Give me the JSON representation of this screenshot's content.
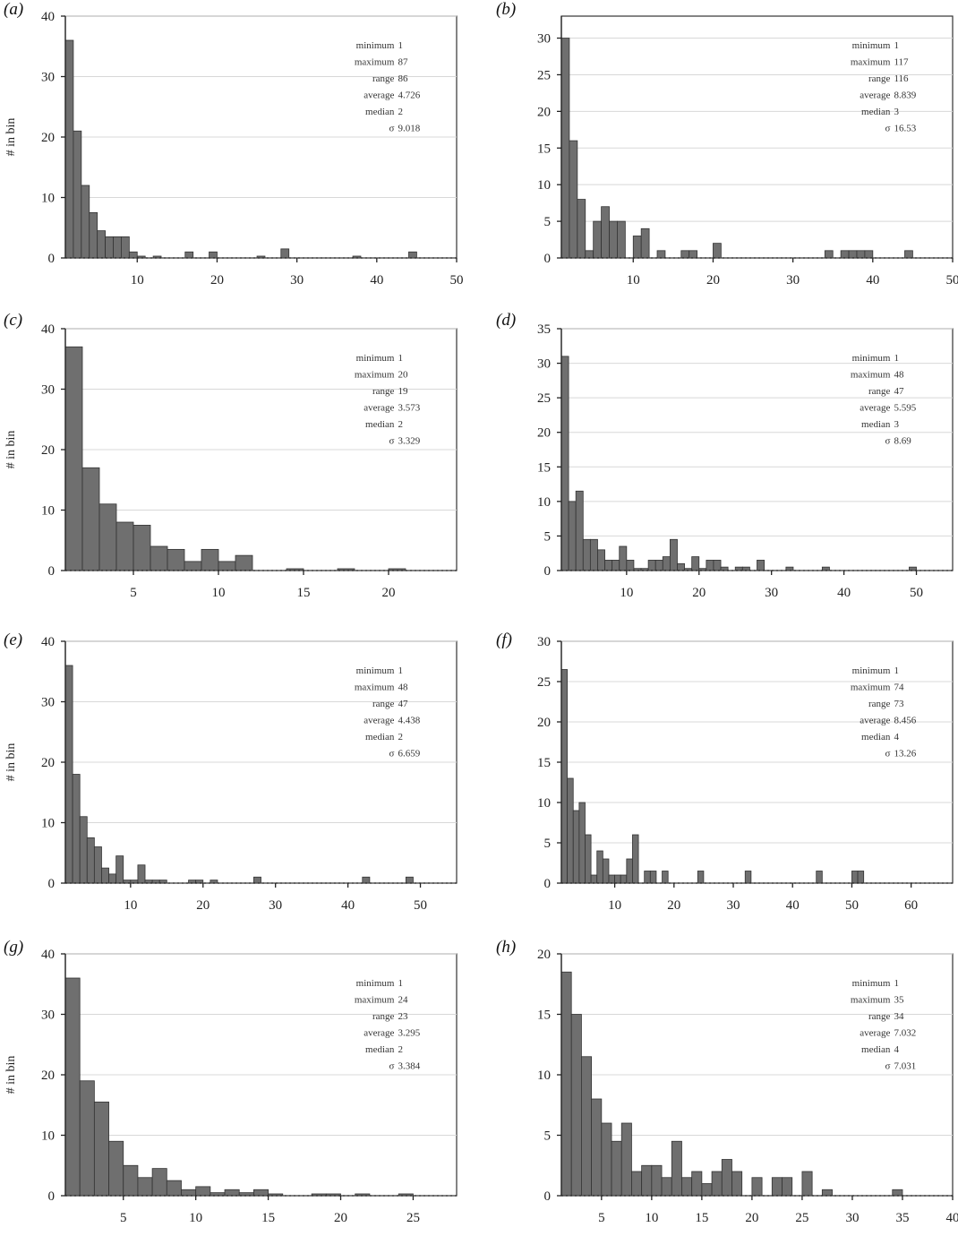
{
  "chart_data": [
    {
      "panel": "(a)",
      "type": "bar",
      "ylabel": "# in bin",
      "xlim": [
        1,
        50
      ],
      "xticks": [
        10,
        20,
        30,
        40,
        50
      ],
      "ylim": [
        0,
        40
      ],
      "yticks": [
        0,
        10,
        20,
        30,
        40
      ],
      "x": [
        1,
        2,
        3,
        4,
        5,
        6,
        7,
        8,
        9,
        10,
        11,
        12,
        13,
        14,
        15,
        16,
        17,
        18,
        19,
        20,
        21,
        22,
        23,
        24,
        25,
        26,
        27,
        28,
        29,
        30,
        31,
        32,
        33,
        34,
        35,
        36,
        37,
        38,
        39,
        40,
        41,
        42,
        43,
        44,
        45,
        46,
        47,
        48,
        49
      ],
      "values": [
        36,
        21,
        12,
        7.5,
        4.5,
        3.5,
        3.5,
        3.5,
        1,
        0.3,
        0,
        0.3,
        0,
        0,
        0,
        1,
        0,
        0,
        1,
        0,
        0,
        0,
        0,
        0,
        0.3,
        0,
        0,
        1.5,
        0,
        0,
        0,
        0,
        0,
        0,
        0,
        0,
        0.3,
        0,
        0,
        0,
        0,
        0,
        0,
        1,
        0,
        0,
        0,
        0,
        0
      ],
      "stats": [
        {
          "label": "minimum",
          "value": "1"
        },
        {
          "label": "maximum",
          "value": "87"
        },
        {
          "label": "range",
          "value": "86"
        },
        {
          "label": "average",
          "value": "4.726"
        },
        {
          "label": "median",
          "value": "2"
        },
        {
          "label": "σ",
          "value": "9.018"
        }
      ]
    },
    {
      "panel": "(b)",
      "type": "bar",
      "ylabel": "",
      "xlim": [
        1,
        50
      ],
      "xticks": [
        10,
        20,
        30,
        40,
        50
      ],
      "ylim": [
        0,
        33
      ],
      "yticks": [
        0,
        5,
        10,
        15,
        20,
        25,
        30
      ],
      "x": [
        1,
        2,
        3,
        4,
        5,
        6,
        7,
        8,
        9,
        10,
        11,
        12,
        13,
        14,
        15,
        16,
        17,
        18,
        19,
        20,
        21,
        22,
        23,
        24,
        25,
        26,
        27,
        28,
        29,
        30,
        31,
        32,
        33,
        34,
        35,
        36,
        37,
        38,
        39,
        40,
        41,
        42,
        43,
        44,
        45,
        46,
        47,
        48,
        49
      ],
      "values": [
        30,
        16,
        8,
        1,
        5,
        7,
        5,
        5,
        0,
        3,
        4,
        0,
        1,
        0,
        0,
        1,
        1,
        0,
        0,
        2,
        0,
        0,
        0,
        0,
        0,
        0,
        0,
        0,
        0,
        0,
        0,
        0,
        0,
        1,
        0,
        1,
        1,
        1,
        1,
        0,
        0,
        0,
        0,
        1,
        0,
        0,
        0,
        0,
        0
      ],
      "stats": [
        {
          "label": "minimum",
          "value": "1"
        },
        {
          "label": "maximum",
          "value": "117"
        },
        {
          "label": "range",
          "value": "116"
        },
        {
          "label": "average",
          "value": "8.839"
        },
        {
          "label": "median",
          "value": "3"
        },
        {
          "label": "σ",
          "value": "16.53"
        }
      ]
    },
    {
      "panel": "(c)",
      "type": "bar",
      "ylabel": "# in bin",
      "xlim": [
        1,
        24
      ],
      "xticks": [
        5,
        10,
        15,
        20
      ],
      "ylim": [
        0,
        40
      ],
      "yticks": [
        0,
        10,
        20,
        30,
        40
      ],
      "x": [
        1,
        2,
        3,
        4,
        5,
        6,
        7,
        8,
        9,
        10,
        11,
        12,
        13,
        14,
        15,
        16,
        17,
        18,
        19,
        20,
        21,
        22,
        23
      ],
      "values": [
        37,
        17,
        11,
        8,
        7.5,
        4,
        3.5,
        1.5,
        3.5,
        1.5,
        2.5,
        0,
        0,
        0.3,
        0,
        0,
        0.3,
        0,
        0,
        0.3,
        0,
        0,
        0
      ],
      "stats": [
        {
          "label": "minimum",
          "value": "1"
        },
        {
          "label": "maximum",
          "value": "20"
        },
        {
          "label": "range",
          "value": "19"
        },
        {
          "label": "average",
          "value": "3.573"
        },
        {
          "label": "median",
          "value": "2"
        },
        {
          "label": "σ",
          "value": "3.329"
        }
      ]
    },
    {
      "panel": "(d)",
      "type": "bar",
      "ylabel": "",
      "xlim": [
        1,
        55
      ],
      "xticks": [
        10,
        20,
        30,
        40,
        50
      ],
      "ylim": [
        0,
        35
      ],
      "yticks": [
        0,
        5,
        10,
        15,
        20,
        25,
        30,
        35
      ],
      "x": [
        1,
        2,
        3,
        4,
        5,
        6,
        7,
        8,
        9,
        10,
        11,
        12,
        13,
        14,
        15,
        16,
        17,
        18,
        19,
        20,
        21,
        22,
        23,
        24,
        25,
        26,
        27,
        28,
        29,
        30,
        31,
        32,
        33,
        34,
        35,
        36,
        37,
        38,
        39,
        40,
        41,
        42,
        43,
        44,
        45,
        46,
        47,
        48,
        49,
        50,
        51,
        52,
        53,
        54
      ],
      "values": [
        31,
        10,
        11.5,
        4.5,
        4.5,
        3,
        1.5,
        1.5,
        3.5,
        1.5,
        0.3,
        0.3,
        1.5,
        1.5,
        2,
        4.5,
        1,
        0.3,
        2,
        0.3,
        1.5,
        1.5,
        0.5,
        0,
        0.5,
        0.5,
        0,
        1.5,
        0,
        0,
        0,
        0.5,
        0,
        0,
        0,
        0,
        0.5,
        0,
        0,
        0,
        0,
        0,
        0,
        0,
        0,
        0,
        0,
        0,
        0.5,
        0,
        0,
        0,
        0,
        0
      ],
      "stats": [
        {
          "label": "minimum",
          "value": "1"
        },
        {
          "label": "maximum",
          "value": "48"
        },
        {
          "label": "range",
          "value": "47"
        },
        {
          "label": "average",
          "value": "5.595"
        },
        {
          "label": "median",
          "value": "3"
        },
        {
          "label": "σ",
          "value": "8.69"
        }
      ]
    },
    {
      "panel": "(e)",
      "type": "bar",
      "ylabel": "# in bin",
      "xlim": [
        1,
        55
      ],
      "xticks": [
        10,
        20,
        30,
        40,
        50
      ],
      "ylim": [
        0,
        40
      ],
      "yticks": [
        0,
        10,
        20,
        30,
        40
      ],
      "x": [
        1,
        2,
        3,
        4,
        5,
        6,
        7,
        8,
        9,
        10,
        11,
        12,
        13,
        14,
        15,
        16,
        17,
        18,
        19,
        20,
        21,
        22,
        23,
        24,
        25,
        26,
        27,
        28,
        29,
        30,
        31,
        32,
        33,
        34,
        35,
        36,
        37,
        38,
        39,
        40,
        41,
        42,
        43,
        44,
        45,
        46,
        47,
        48,
        49,
        50,
        51,
        52,
        53,
        54
      ],
      "values": [
        36,
        18,
        11,
        7.5,
        6,
        2.5,
        1.5,
        4.5,
        0.5,
        0.5,
        3,
        0.5,
        0.5,
        0.5,
        0,
        0,
        0,
        0.5,
        0.5,
        0,
        0.5,
        0,
        0,
        0,
        0,
        0,
        1,
        0,
        0,
        0,
        0,
        0,
        0,
        0,
        0,
        0,
        0,
        0,
        0,
        0,
        0,
        1,
        0,
        0,
        0,
        0,
        0,
        1,
        0,
        0,
        0,
        0,
        0,
        0
      ],
      "stats": [
        {
          "label": "minimum",
          "value": "1"
        },
        {
          "label": "maximum",
          "value": "48"
        },
        {
          "label": "range",
          "value": "47"
        },
        {
          "label": "average",
          "value": "4.438"
        },
        {
          "label": "median",
          "value": "2"
        },
        {
          "label": "σ",
          "value": "6.659"
        }
      ]
    },
    {
      "panel": "(f)",
      "type": "bar",
      "ylabel": "",
      "xlim": [
        1,
        67
      ],
      "xticks": [
        10,
        20,
        30,
        40,
        50,
        60
      ],
      "ylim": [
        0,
        30
      ],
      "yticks": [
        0,
        5,
        10,
        15,
        20,
        25,
        30
      ],
      "x": [
        1,
        2,
        3,
        4,
        5,
        6,
        7,
        8,
        9,
        10,
        11,
        12,
        13,
        14,
        15,
        16,
        17,
        18,
        19,
        20,
        21,
        22,
        23,
        24,
        25,
        26,
        27,
        28,
        29,
        30,
        31,
        32,
        33,
        34,
        35,
        36,
        37,
        38,
        39,
        40,
        41,
        42,
        43,
        44,
        45,
        46,
        47,
        48,
        49,
        50,
        51,
        52,
        53,
        54,
        55,
        56,
        57,
        58,
        59,
        60,
        61,
        62,
        63,
        64,
        65,
        66
      ],
      "values": [
        26.5,
        13,
        9,
        10,
        6,
        1,
        4,
        3,
        1,
        1,
        1,
        3,
        6,
        0,
        1.5,
        1.5,
        0,
        1.5,
        0,
        0,
        0,
        0,
        0,
        1.5,
        0,
        0,
        0,
        0,
        0,
        0,
        0,
        1.5,
        0,
        0,
        0,
        0,
        0,
        0,
        0,
        0,
        0,
        0,
        0,
        1.5,
        0,
        0,
        0,
        0,
        0,
        1.5,
        1.5,
        0,
        0,
        0,
        0,
        0,
        0,
        0,
        0,
        0,
        0,
        0,
        0,
        0,
        0,
        0
      ],
      "stats": [
        {
          "label": "minimum",
          "value": "1"
        },
        {
          "label": "maximum",
          "value": "74"
        },
        {
          "label": "range",
          "value": "73"
        },
        {
          "label": "average",
          "value": "8.456"
        },
        {
          "label": "median",
          "value": "4"
        },
        {
          "label": "σ",
          "value": "13.26"
        }
      ]
    },
    {
      "panel": "(g)",
      "type": "bar",
      "ylabel": "# in bin",
      "xlim": [
        1,
        28
      ],
      "xticks": [
        5,
        10,
        15,
        20,
        25
      ],
      "ylim": [
        0,
        40
      ],
      "yticks": [
        0,
        10,
        20,
        30,
        40
      ],
      "x": [
        1,
        2,
        3,
        4,
        5,
        6,
        7,
        8,
        9,
        10,
        11,
        12,
        13,
        14,
        15,
        16,
        17,
        18,
        19,
        20,
        21,
        22,
        23,
        24,
        25,
        26,
        27
      ],
      "values": [
        36,
        19,
        15.5,
        9,
        5,
        3,
        4.5,
        2.5,
        1,
        1.5,
        0.5,
        1,
        0.5,
        1,
        0.3,
        0,
        0,
        0.3,
        0.3,
        0,
        0.3,
        0,
        0,
        0.3,
        0,
        0,
        0
      ],
      "stats": [
        {
          "label": "minimum",
          "value": "1"
        },
        {
          "label": "maximum",
          "value": "24"
        },
        {
          "label": "range",
          "value": "23"
        },
        {
          "label": "average",
          "value": "3.295"
        },
        {
          "label": "median",
          "value": "2"
        },
        {
          "label": "σ",
          "value": "3.384"
        }
      ]
    },
    {
      "panel": "(h)",
      "type": "bar",
      "ylabel": "",
      "xlim": [
        1,
        40
      ],
      "xticks": [
        5,
        10,
        15,
        20,
        25,
        30,
        35,
        40
      ],
      "ylim": [
        0,
        20
      ],
      "yticks": [
        0,
        5,
        10,
        15,
        20
      ],
      "x": [
        1,
        2,
        3,
        4,
        5,
        6,
        7,
        8,
        9,
        10,
        11,
        12,
        13,
        14,
        15,
        16,
        17,
        18,
        19,
        20,
        21,
        22,
        23,
        24,
        25,
        26,
        27,
        28,
        29,
        30,
        31,
        32,
        33,
        34,
        35,
        36,
        37,
        38,
        39
      ],
      "values": [
        18.5,
        15,
        11.5,
        8,
        6,
        4.5,
        6,
        2,
        2.5,
        2.5,
        1.5,
        4.5,
        1.5,
        2,
        1,
        2,
        3,
        2,
        0,
        1.5,
        0,
        1.5,
        1.5,
        0,
        2,
        0,
        0.5,
        0,
        0,
        0,
        0,
        0,
        0,
        0.5,
        0,
        0,
        0,
        0,
        0
      ],
      "stats": [
        {
          "label": "minimum",
          "value": "1"
        },
        {
          "label": "maximum",
          "value": "35"
        },
        {
          "label": "range",
          "value": "34"
        },
        {
          "label": "average",
          "value": "7.032"
        },
        {
          "label": "median",
          "value": "4"
        },
        {
          "label": "σ",
          "value": "7.031"
        }
      ]
    }
  ]
}
